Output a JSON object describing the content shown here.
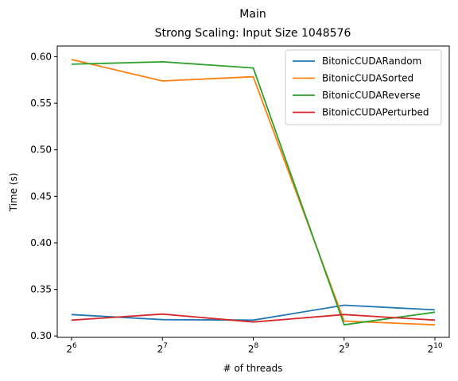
{
  "chart_data": {
    "type": "line",
    "title": "Main",
    "subtitle": "Strong Scaling: Input Size 1048576",
    "xlabel": "# of threads",
    "ylabel": "Time (s)",
    "x": [
      64,
      128,
      256,
      512,
      1024
    ],
    "x_ticks": [
      {
        "base": "2",
        "exp": "6"
      },
      {
        "base": "2",
        "exp": "7"
      },
      {
        "base": "2",
        "exp": "8"
      },
      {
        "base": "2",
        "exp": "9"
      },
      {
        "base": "2",
        "exp": "10"
      }
    ],
    "x_scale": "log2",
    "y_ticks": [
      "0.30",
      "0.35",
      "0.40",
      "0.45",
      "0.50",
      "0.55",
      "0.60"
    ],
    "ylim": [
      0.2985,
      0.6115
    ],
    "grid": false,
    "legend_position": "top-right",
    "series": [
      {
        "name": "BitonicCUDARandom",
        "color": "#1f77b4",
        "values": [
          0.323,
          0.3175,
          0.317,
          0.333,
          0.328
        ]
      },
      {
        "name": "BitonicCUDASorted",
        "color": "#ff7f0e",
        "values": [
          0.597,
          0.574,
          0.5785,
          0.316,
          0.312
        ]
      },
      {
        "name": "BitonicCUDAReverse",
        "color": "#2ca02c",
        "values": [
          0.592,
          0.5945,
          0.588,
          0.312,
          0.3255
        ]
      },
      {
        "name": "BitonicCUDAPerturbed",
        "color": "#d62728",
        "values": [
          0.317,
          0.3235,
          0.315,
          0.323,
          0.317
        ]
      }
    ]
  }
}
